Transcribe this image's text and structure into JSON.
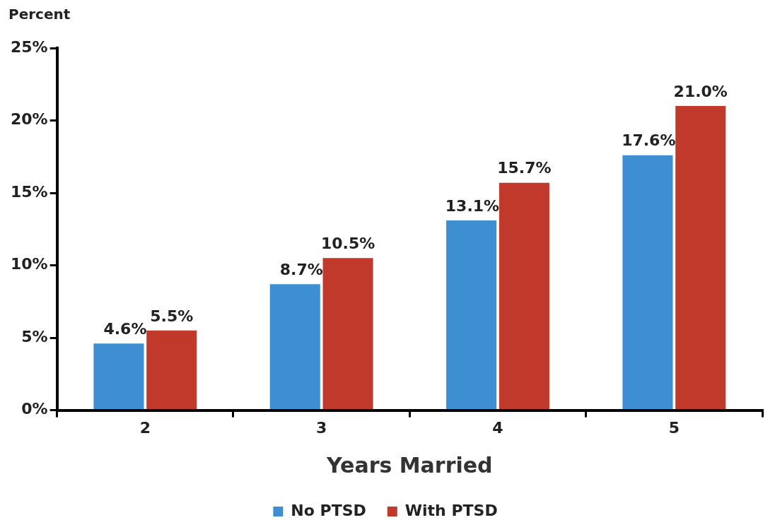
{
  "chart_data": {
    "type": "bar",
    "ylabel": "Percent",
    "xlabel": "Years Married",
    "categories": [
      "2",
      "3",
      "4",
      "5"
    ],
    "series": [
      {
        "name": "No PTSD",
        "color": "#3d8fd1",
        "values": [
          4.6,
          8.7,
          13.1,
          17.6
        ],
        "value_labels": [
          "4.6%",
          "8.7%",
          "13.1%",
          "17.6%"
        ]
      },
      {
        "name": "With PTSD",
        "color": "#c0392b",
        "values": [
          5.5,
          10.5,
          15.7,
          21.0
        ],
        "value_labels": [
          "5.5%",
          "10.5%",
          "15.7%",
          "21.0%"
        ]
      }
    ],
    "ylim": [
      0,
      25
    ],
    "yticks": [
      {
        "value": 0,
        "label": "0%"
      },
      {
        "value": 5,
        "label": "5%"
      },
      {
        "value": 10,
        "label": "10%"
      },
      {
        "value": 15,
        "label": "15%"
      },
      {
        "value": 20,
        "label": "20%"
      },
      {
        "value": 25,
        "label": "25%"
      }
    ],
    "grid": false,
    "legend": "bottom"
  }
}
